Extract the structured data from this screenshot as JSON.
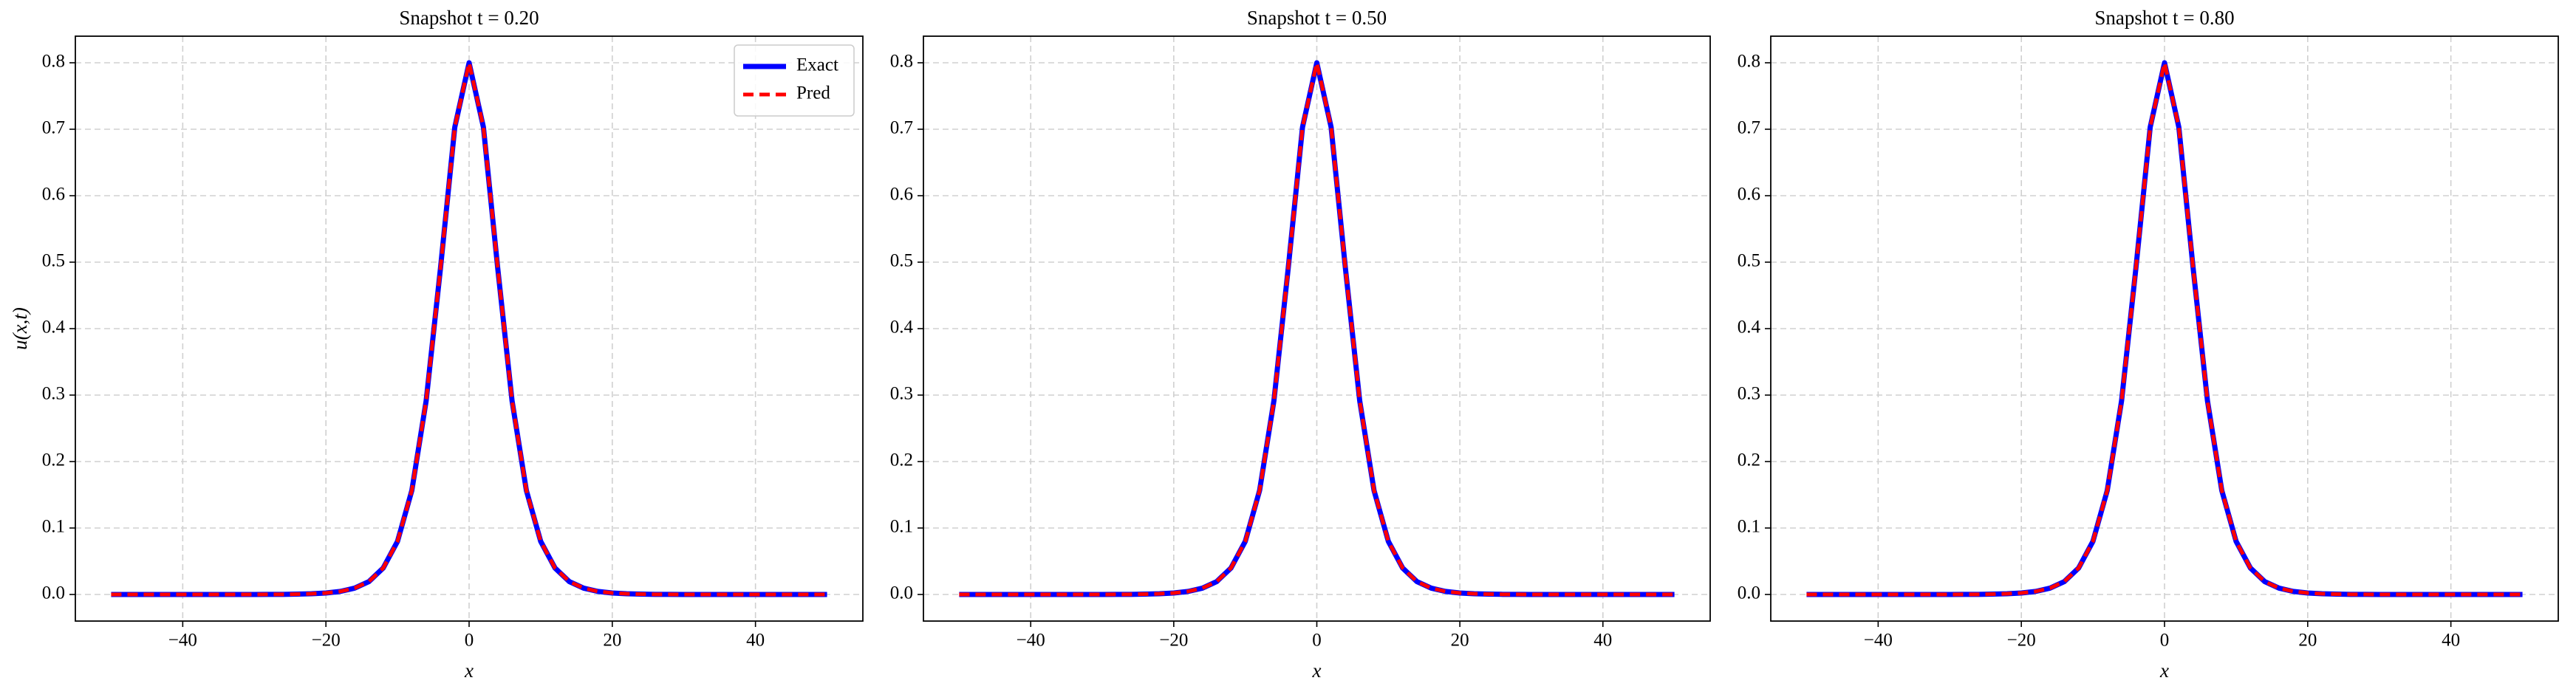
{
  "chart_data": [
    {
      "type": "line",
      "title": "Snapshot t = 0.20",
      "xlabel": "x",
      "ylabel": "u(x,t)",
      "x": [
        -50,
        -48,
        -46,
        -44,
        -42,
        -40,
        -38,
        -36,
        -34,
        -32,
        -30,
        -28,
        -26,
        -24,
        -22,
        -20,
        -18,
        -16,
        -14,
        -12,
        -10,
        -8,
        -6,
        -4,
        -2,
        0,
        2,
        4,
        6,
        8,
        10,
        12,
        14,
        16,
        18,
        20,
        22,
        24,
        26,
        28,
        30,
        32,
        34,
        36,
        38,
        40,
        42,
        44,
        46,
        48,
        50
      ],
      "series": [
        {
          "name": "Exact",
          "color": "#0000ff",
          "linestyle": "solid",
          "values": [
            0,
            0,
            0,
            0,
            0,
            0,
            0,
            0,
            0,
            0,
            0,
            0.0001,
            0.0002,
            0.0005,
            0.0011,
            0.0022,
            0.0046,
            0.0095,
            0.0194,
            0.0398,
            0.0799,
            0.1565,
            0.2913,
            0.4907,
            0.7031,
            0.8,
            0.7031,
            0.4907,
            0.2913,
            0.1565,
            0.0799,
            0.0398,
            0.0194,
            0.0095,
            0.0046,
            0.0022,
            0.0011,
            0.0005,
            0.0002,
            0.0001,
            0,
            0,
            0,
            0,
            0,
            0,
            0,
            0,
            0,
            0,
            0
          ]
        },
        {
          "name": "Pred",
          "color": "#ff0000",
          "linestyle": "dashed",
          "values": [
            0,
            0,
            0,
            0,
            0,
            0,
            0,
            0,
            0,
            0,
            0,
            0.0001,
            0.0002,
            0.0005,
            0.0011,
            0.0022,
            0.0046,
            0.0095,
            0.0194,
            0.0398,
            0.0799,
            0.1565,
            0.2913,
            0.4907,
            0.7031,
            0.8,
            0.7031,
            0.4907,
            0.2913,
            0.1565,
            0.0799,
            0.0398,
            0.0194,
            0.0095,
            0.0046,
            0.0022,
            0.0011,
            0.0005,
            0.0002,
            0.0001,
            0,
            0,
            0,
            0,
            0,
            0,
            0,
            0,
            0,
            0,
            0
          ]
        }
      ],
      "xlim": [
        -55,
        55
      ],
      "ylim": [
        -0.04,
        0.84
      ],
      "xticks": [
        {
          "value": -40,
          "label": "−40"
        },
        {
          "value": -20,
          "label": "−20"
        },
        0,
        20,
        40
      ],
      "yticks": [
        {
          "value": 0,
          "label": "0.0"
        },
        0.1,
        0.2,
        0.3,
        0.4,
        0.5,
        0.6,
        0.7,
        0.8
      ],
      "grid": true,
      "legend": "upper right"
    },
    {
      "type": "line",
      "title": "Snapshot t = 0.50",
      "xlabel": "x",
      "x": [
        -50,
        -48,
        -46,
        -44,
        -42,
        -40,
        -38,
        -36,
        -34,
        -32,
        -30,
        -28,
        -26,
        -24,
        -22,
        -20,
        -18,
        -16,
        -14,
        -12,
        -10,
        -8,
        -6,
        -4,
        -2,
        0,
        2,
        4,
        6,
        8,
        10,
        12,
        14,
        16,
        18,
        20,
        22,
        24,
        26,
        28,
        30,
        32,
        34,
        36,
        38,
        40,
        42,
        44,
        46,
        48,
        50
      ],
      "series": [
        {
          "color": "#0000ff",
          "linestyle": "solid",
          "values": [
            0,
            0,
            0,
            0,
            0,
            0,
            0,
            0,
            0,
            0,
            0,
            0.0001,
            0.0002,
            0.0005,
            0.0011,
            0.0022,
            0.0046,
            0.0095,
            0.0194,
            0.0398,
            0.0799,
            0.1565,
            0.2913,
            0.4907,
            0.7031,
            0.8,
            0.7031,
            0.4907,
            0.2913,
            0.1565,
            0.0799,
            0.0398,
            0.0194,
            0.0095,
            0.0046,
            0.0022,
            0.0011,
            0.0005,
            0.0002,
            0.0001,
            0,
            0,
            0,
            0,
            0,
            0,
            0,
            0,
            0,
            0,
            0
          ]
        },
        {
          "color": "#ff0000",
          "linestyle": "dashed",
          "values": [
            0,
            0,
            0,
            0,
            0,
            0,
            0,
            0,
            0,
            0,
            0,
            0.0001,
            0.0002,
            0.0005,
            0.0011,
            0.0022,
            0.0046,
            0.0095,
            0.0194,
            0.0398,
            0.0799,
            0.1565,
            0.2913,
            0.4907,
            0.7031,
            0.8,
            0.7031,
            0.4907,
            0.2913,
            0.1565,
            0.0799,
            0.0398,
            0.0194,
            0.0095,
            0.0046,
            0.0022,
            0.0011,
            0.0005,
            0.0002,
            0.0001,
            0,
            0,
            0,
            0,
            0,
            0,
            0,
            0,
            0,
            0,
            0
          ]
        }
      ],
      "xlim": [
        -55,
        55
      ],
      "ylim": [
        -0.04,
        0.84
      ],
      "xticks": [
        {
          "value": -40,
          "label": "−40"
        },
        {
          "value": -20,
          "label": "−20"
        },
        0,
        20,
        40
      ],
      "yticks": [
        {
          "value": 0,
          "label": "0.0"
        },
        0.1,
        0.2,
        0.3,
        0.4,
        0.5,
        0.6,
        0.7,
        0.8
      ],
      "grid": true
    },
    {
      "type": "line",
      "title": "Snapshot t = 0.80",
      "xlabel": "x",
      "x": [
        -50,
        -48,
        -46,
        -44,
        -42,
        -40,
        -38,
        -36,
        -34,
        -32,
        -30,
        -28,
        -26,
        -24,
        -22,
        -20,
        -18,
        -16,
        -14,
        -12,
        -10,
        -8,
        -6,
        -4,
        -2,
        0,
        2,
        4,
        6,
        8,
        10,
        12,
        14,
        16,
        18,
        20,
        22,
        24,
        26,
        28,
        30,
        32,
        34,
        36,
        38,
        40,
        42,
        44,
        46,
        48,
        50
      ],
      "series": [
        {
          "color": "#0000ff",
          "linestyle": "solid",
          "values": [
            0,
            0,
            0,
            0,
            0,
            0,
            0,
            0,
            0,
            0,
            0,
            0.0001,
            0.0002,
            0.0005,
            0.0011,
            0.0022,
            0.0046,
            0.0095,
            0.0194,
            0.0398,
            0.0799,
            0.1565,
            0.2913,
            0.4907,
            0.7031,
            0.8,
            0.7031,
            0.4907,
            0.2913,
            0.1565,
            0.0799,
            0.0398,
            0.0194,
            0.0095,
            0.0046,
            0.0022,
            0.0011,
            0.0005,
            0.0002,
            0.0001,
            0,
            0,
            0,
            0,
            0,
            0,
            0,
            0,
            0,
            0,
            0
          ]
        },
        {
          "color": "#ff0000",
          "linestyle": "dashed",
          "values": [
            0,
            0,
            0,
            0,
            0,
            0,
            0,
            0,
            0,
            0,
            0,
            0.0001,
            0.0002,
            0.0005,
            0.0011,
            0.0022,
            0.0046,
            0.0095,
            0.0194,
            0.0398,
            0.0799,
            0.1565,
            0.2913,
            0.4907,
            0.7031,
            0.8,
            0.7031,
            0.4907,
            0.2913,
            0.1565,
            0.0799,
            0.0398,
            0.0194,
            0.0095,
            0.0046,
            0.0022,
            0.0011,
            0.0005,
            0.0002,
            0.0001,
            0,
            0,
            0,
            0,
            0,
            0,
            0,
            0,
            0,
            0,
            0
          ]
        }
      ],
      "xlim": [
        -55,
        55
      ],
      "ylim": [
        -0.04,
        0.84
      ],
      "xticks": [
        {
          "value": -40,
          "label": "−40"
        },
        {
          "value": -20,
          "label": "−20"
        },
        0,
        20,
        40
      ],
      "yticks": [
        {
          "value": 0,
          "label": "0.0"
        },
        0.1,
        0.2,
        0.3,
        0.4,
        0.5,
        0.6,
        0.7,
        0.8
      ],
      "grid": true
    }
  ]
}
